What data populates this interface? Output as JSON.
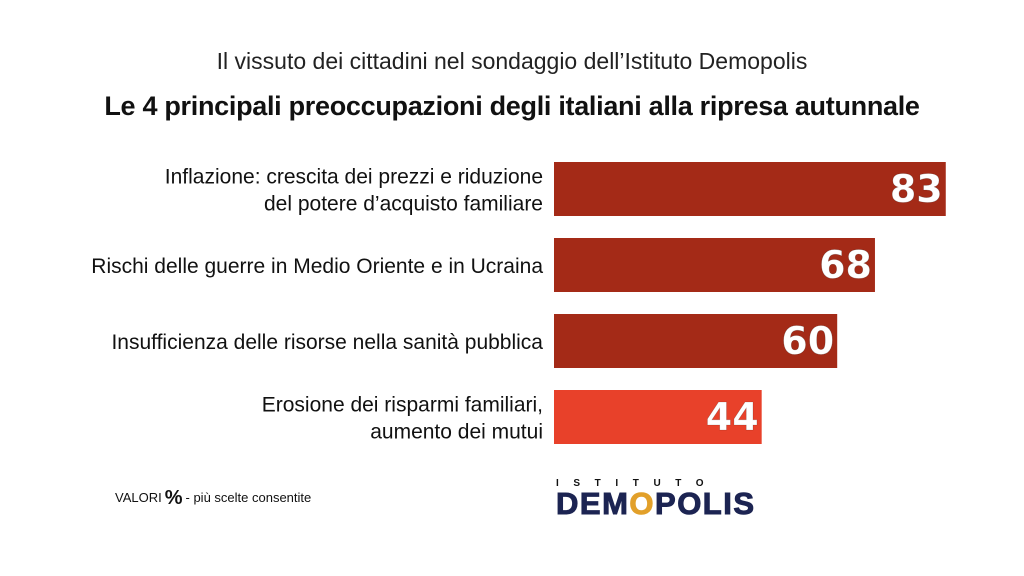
{
  "header": {
    "subtitle": "Il vissuto dei cittadini nel sondaggio dell’Istituto Demopolis",
    "title": "Le 4 principali preoccupazioni degli italiani alla ripresa autunnale"
  },
  "footer": {
    "note_prefix": "VALORI",
    "note_percent": "%",
    "note_suffix": "- più scelte consentite"
  },
  "logo": {
    "top": "ISTITUTO",
    "name_start": "DEM",
    "name_o": "O",
    "name_end": "POLIS"
  },
  "colors": {
    "bar_dark": "#a42a17",
    "bar_highlight": "#e8412a",
    "logo_navy": "#1c2452",
    "logo_gold": "#e2a02a"
  },
  "chart_data": {
    "type": "bar",
    "orientation": "horizontal",
    "categories": [
      [
        "Inflazione: crescita dei prezzi e riduzione",
        "del potere d’acquisto familiare"
      ],
      [
        "Rischi delle guerre in Medio Oriente e in Ucraina"
      ],
      [
        "Insufficienza delle risorse nella sanità pubblica"
      ],
      [
        "Erosione dei risparmi familiari,",
        "aumento dei mutui"
      ]
    ],
    "values": [
      83,
      68,
      60,
      44
    ],
    "highlight_index": 3,
    "unit": "%",
    "xlim": [
      0,
      100
    ],
    "grid": false,
    "legend": "none"
  }
}
